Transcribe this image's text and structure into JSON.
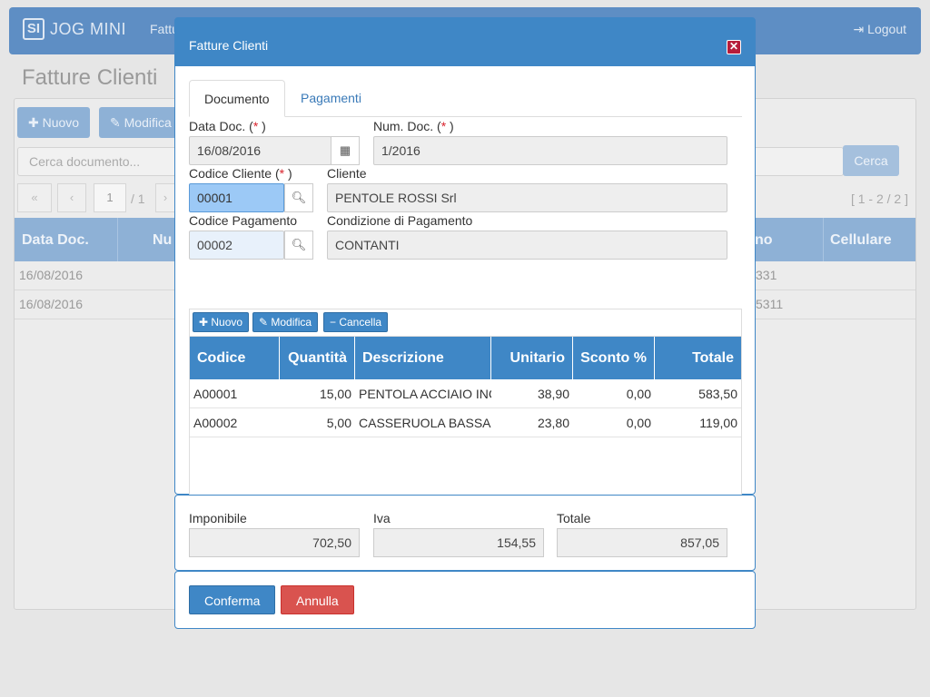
{
  "app": {
    "brand_logo": "SI",
    "brand_name": "JOG MINI",
    "nav_item": "Fattu",
    "logout": "Logout",
    "page_title": "Fatture Clienti",
    "btn_new": "Nuovo",
    "btn_edit": "Modifica",
    "search_placeholder": "Cerca documento...",
    "search_button": "Cerca",
    "page_current": "1",
    "page_total": "/ 1",
    "range": "[ 1 - 2 / 2 ]",
    "columns": [
      "Data Doc.",
      "Nu",
      "no",
      "Cellulare"
    ],
    "rows": [
      {
        "date": "16/08/2016",
        "tail": "331"
      },
      {
        "date": "16/08/2016",
        "tail": "5311"
      }
    ]
  },
  "modal": {
    "title": "Fatture Clienti",
    "tabs": [
      "Documento",
      "Pagamenti"
    ],
    "labels": {
      "data_doc": "Data Doc. (",
      "num_doc": "Num. Doc. (",
      "codice_cliente": "Codice Cliente (",
      "cliente": "Cliente",
      "codice_pagamento": "Codice Pagamento",
      "condizione": "Condizione di Pagamento",
      "required": "*",
      "close_paren": " )"
    },
    "values": {
      "data_doc": "16/08/2016",
      "num_doc": "1/2016",
      "codice_cliente": "00001",
      "cliente": "PENTOLE ROSSI Srl",
      "codice_pagamento": "00002",
      "condizione": "CONTANTI"
    },
    "row_buttons": {
      "new": "Nuovo",
      "edit": "Modifica",
      "delete": "Cancella"
    },
    "grid": {
      "headers": [
        "Codice",
        "Quantità",
        "Descrizione",
        "Unitario",
        "Sconto %",
        "Totale"
      ],
      "rows": [
        [
          "A00001",
          "15,00",
          "PENTOLA ACCIAIO INC",
          "38,90",
          "0,00",
          "583,50"
        ],
        [
          "A00002",
          "5,00",
          "CASSERUOLA BASSA C",
          "23,80",
          "0,00",
          "119,00"
        ]
      ]
    },
    "totals": {
      "imponibile_label": "Imponibile",
      "imponibile": "702,50",
      "iva_label": "Iva",
      "iva": "154,55",
      "totale_label": "Totale",
      "totale": "857,05"
    },
    "footer": {
      "confirm": "Conferma",
      "cancel": "Annulla"
    }
  },
  "colors": {
    "primary": "#3f87c6",
    "danger": "#d9534f",
    "required": "#d9232d"
  }
}
